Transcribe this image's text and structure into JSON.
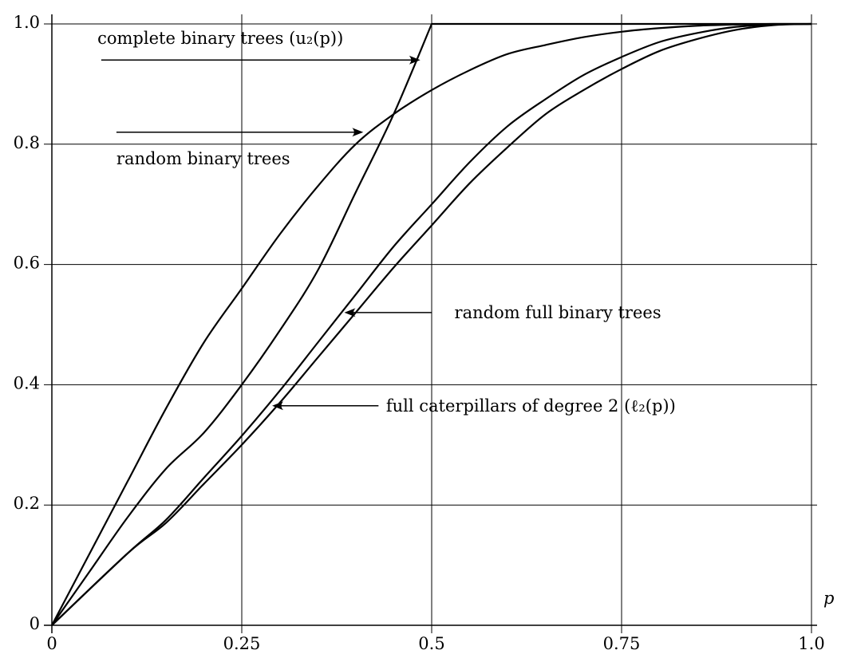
{
  "chart_data": {
    "type": "line",
    "title": "",
    "xlabel": "p",
    "ylabel": "",
    "xlim": [
      0,
      1
    ],
    "ylim": [
      0,
      1
    ],
    "grid": true,
    "xticks": [
      {
        "value": 0,
        "label": "0"
      },
      {
        "value": 0.25,
        "label": "0.25"
      },
      {
        "value": 0.5,
        "label": "0.5"
      },
      {
        "value": 0.75,
        "label": "0.75"
      },
      {
        "value": 1.0,
        "label": "1.0"
      }
    ],
    "yticks": [
      {
        "value": 0,
        "label": "0"
      },
      {
        "value": 0.2,
        "label": "0.2"
      },
      {
        "value": 0.4,
        "label": "0.4"
      },
      {
        "value": 0.6,
        "label": "0.6"
      },
      {
        "value": 0.8,
        "label": "0.8"
      },
      {
        "value": 1.0,
        "label": "1.0"
      }
    ],
    "series": [
      {
        "name": "complete binary trees (u2(p))",
        "x": [
          0,
          0.05,
          0.1,
          0.15,
          0.2,
          0.25,
          0.3,
          0.35,
          0.4,
          0.45,
          0.5,
          0.6,
          0.7,
          0.8,
          0.9,
          1.0
        ],
        "y": [
          0,
          0.09,
          0.18,
          0.26,
          0.32,
          0.4,
          0.49,
          0.59,
          0.72,
          0.85,
          1.0,
          1.0,
          1.0,
          1.0,
          1.0,
          1.0
        ]
      },
      {
        "name": "random binary trees",
        "x": [
          0,
          0.05,
          0.1,
          0.15,
          0.2,
          0.25,
          0.3,
          0.35,
          0.4,
          0.45,
          0.5,
          0.55,
          0.6,
          0.65,
          0.7,
          0.75,
          0.8,
          0.85,
          0.9,
          0.95,
          1.0
        ],
        "y": [
          0,
          0.12,
          0.24,
          0.36,
          0.47,
          0.56,
          0.65,
          0.73,
          0.8,
          0.85,
          0.89,
          0.923,
          0.95,
          0.965,
          0.978,
          0.987,
          0.993,
          0.997,
          0.999,
          1.0,
          1.0
        ]
      },
      {
        "name": "random full binary trees",
        "x": [
          0,
          0.1,
          0.15,
          0.2,
          0.25,
          0.3,
          0.35,
          0.4,
          0.45,
          0.5,
          0.55,
          0.6,
          0.65,
          0.7,
          0.75,
          0.8,
          0.85,
          0.9,
          0.95,
          1.0
        ],
        "y": [
          0,
          0.12,
          0.175,
          0.245,
          0.315,
          0.39,
          0.47,
          0.55,
          0.63,
          0.7,
          0.77,
          0.83,
          0.875,
          0.915,
          0.945,
          0.97,
          0.985,
          0.995,
          0.999,
          1.0
        ]
      },
      {
        "name": "full caterpillars of degree 2 (ℓ2(p))",
        "x": [
          0,
          0.1,
          0.15,
          0.2,
          0.25,
          0.3,
          0.35,
          0.4,
          0.45,
          0.5,
          0.55,
          0.6,
          0.65,
          0.7,
          0.75,
          0.8,
          0.85,
          0.9,
          0.95,
          1.0
        ],
        "y": [
          0,
          0.12,
          0.17,
          0.235,
          0.3,
          0.37,
          0.445,
          0.52,
          0.595,
          0.665,
          0.735,
          0.795,
          0.85,
          0.89,
          0.925,
          0.955,
          0.975,
          0.99,
          0.998,
          1.0
        ]
      }
    ],
    "annotations": [
      {
        "text": "complete binary trees (u₂(p))",
        "text_pos": [
          0.06,
          1.0
        ],
        "from": [
          0.065,
          0.94
        ],
        "to": [
          0.485,
          0.94
        ]
      },
      {
        "text": "random binary trees",
        "text_pos": [
          0.085,
          0.8
        ],
        "from": [
          0.085,
          0.82
        ],
        "to": [
          0.41,
          0.82
        ]
      },
      {
        "text": "random full binary trees",
        "text_pos": [
          0.53,
          0.52
        ],
        "from": [
          0.5,
          0.52
        ],
        "to": [
          0.385,
          0.52
        ]
      },
      {
        "text": "full caterpillars of degree 2 (ℓ₂(p))",
        "text_pos": [
          0.44,
          0.365
        ],
        "from": [
          0.43,
          0.365
        ],
        "to": [
          0.29,
          0.365
        ]
      }
    ]
  }
}
